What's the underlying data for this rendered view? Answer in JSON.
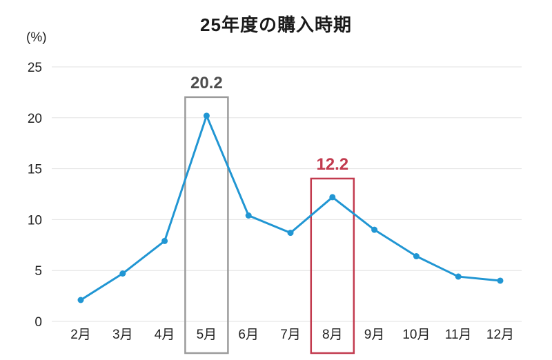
{
  "title": "25年度の購入時期",
  "y_unit_label": "(%)",
  "colors": {
    "line": "#2196d3",
    "point": "#2196d3",
    "grid": "#e2e2e2",
    "axis_text": "#222222",
    "title_text": "#1a1a1a"
  },
  "chart_data": {
    "type": "line",
    "title": "25年度の購入時期",
    "ylabel": "(%)",
    "categories": [
      "2月",
      "3月",
      "4月",
      "5月",
      "6月",
      "7月",
      "8月",
      "9月",
      "10月",
      "11月",
      "12月"
    ],
    "values": [
      2.1,
      4.7,
      7.9,
      20.2,
      10.4,
      8.7,
      12.2,
      9.0,
      6.4,
      4.4,
      4.0
    ],
    "ylim": [
      0,
      25
    ],
    "yticks": [
      0,
      5,
      10,
      15,
      20,
      25
    ],
    "grid": true,
    "legend": "none",
    "annotations": [
      {
        "category": "5月",
        "value": 20.2,
        "label": "20.2",
        "label_color": "#4d4d4d",
        "box_color": "#9b9b9b"
      },
      {
        "category": "8月",
        "value": 12.2,
        "label": "12.2",
        "label_color": "#c23a4e",
        "box_color": "#c23a4e"
      }
    ]
  }
}
